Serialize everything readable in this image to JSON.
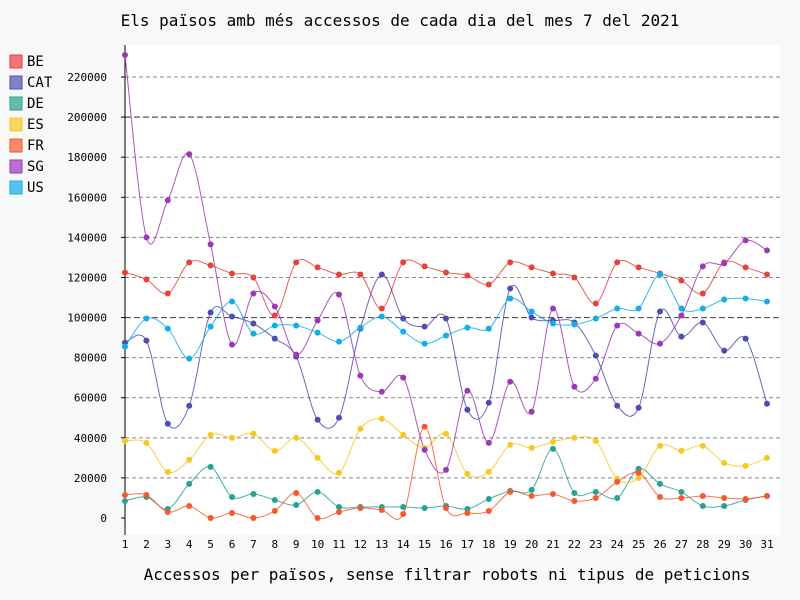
{
  "chart_data": {
    "type": "line",
    "title": "Els països amb més accessos de cada dia del mes 7 del 2021",
    "xlabel": "Accessos per països, sense filtrar robots ni tipus de peticions",
    "ylabel": "",
    "ylim": [
      0,
      230000
    ],
    "y_ticks": [
      0,
      20000,
      40000,
      60000,
      80000,
      100000,
      120000,
      140000,
      160000,
      180000,
      200000,
      220000
    ],
    "grid": true,
    "legend": "left",
    "x": [
      1,
      2,
      3,
      4,
      5,
      6,
      7,
      8,
      9,
      10,
      11,
      12,
      13,
      14,
      15,
      16,
      17,
      18,
      19,
      20,
      21,
      22,
      23,
      24,
      25,
      26,
      27,
      28,
      29,
      30,
      31
    ],
    "series": [
      {
        "name": "BE",
        "color": "#e8413a",
        "values": [
          122500,
          119000,
          112000,
          127500,
          126000,
          122000,
          120000,
          101000,
          127500,
          125000,
          121500,
          121500,
          104500,
          127500,
          125500,
          122500,
          121000,
          116500,
          127500,
          125000,
          122000,
          120000,
          107000,
          127500,
          125000,
          122000,
          118500,
          112000,
          127500,
          125000,
          121500
        ]
      },
      {
        "name": "CAT",
        "color": "#4d4fb0",
        "values": [
          87500,
          88500,
          47000,
          56000,
          102500,
          100500,
          97000,
          89500,
          80500,
          49000,
          50000,
          94500,
          121500,
          99500,
          95500,
          99500,
          54000,
          57500,
          114500,
          100000,
          98500,
          97500,
          81000,
          56000,
          55000,
          103000,
          90500,
          97500,
          83500,
          89500,
          57000
        ]
      },
      {
        "name": "DE",
        "color": "#26a28e",
        "values": [
          8500,
          10500,
          4500,
          17000,
          25500,
          10500,
          12000,
          9000,
          6500,
          13000,
          5500,
          5500,
          5500,
          5500,
          5000,
          6000,
          4500,
          9500,
          13500,
          14000,
          34500,
          12500,
          13000,
          10000,
          24500,
          17000,
          13000,
          6000,
          6000,
          9000,
          11000
        ]
      },
      {
        "name": "ES",
        "color": "#f5c91f",
        "values": [
          38500,
          37500,
          23000,
          29000,
          41500,
          40000,
          42000,
          33500,
          40000,
          30000,
          22500,
          44500,
          49500,
          41500,
          35000,
          42000,
          22000,
          23000,
          36500,
          35000,
          38000,
          40000,
          38500,
          19500,
          20000,
          36000,
          33500,
          36000,
          27500,
          26000,
          30000
        ]
      },
      {
        "name": "FR",
        "color": "#f7592f",
        "values": [
          11500,
          11500,
          3000,
          6000,
          0,
          2500,
          0,
          3500,
          12500,
          0,
          3000,
          5000,
          4000,
          2000,
          45500,
          5000,
          2500,
          3500,
          13000,
          11000,
          12000,
          8500,
          10000,
          18000,
          22500,
          10500,
          10000,
          11000,
          10000,
          9500,
          11000
        ]
      },
      {
        "name": "SG",
        "color": "#9c38b5",
        "values": [
          231000,
          140000,
          158500,
          181500,
          136500,
          86500,
          112000,
          105500,
          81500,
          98500,
          111500,
          71000,
          63000,
          70000,
          34000,
          24000,
          63500,
          37500,
          68000,
          53000,
          104500,
          65500,
          69500,
          96000,
          92000,
          87000,
          101000,
          125500,
          127000,
          138500,
          133500
        ]
      },
      {
        "name": "US",
        "color": "#12aee8",
        "values": [
          85500,
          99500,
          94500,
          79500,
          95500,
          108000,
          92000,
          96000,
          96000,
          92500,
          88000,
          95000,
          100500,
          93000,
          87000,
          91000,
          95000,
          94500,
          109500,
          103000,
          97000,
          96500,
          99500,
          104500,
          104500,
          121500,
          104500,
          104500,
          109000,
          109500,
          108000
        ]
      }
    ]
  }
}
